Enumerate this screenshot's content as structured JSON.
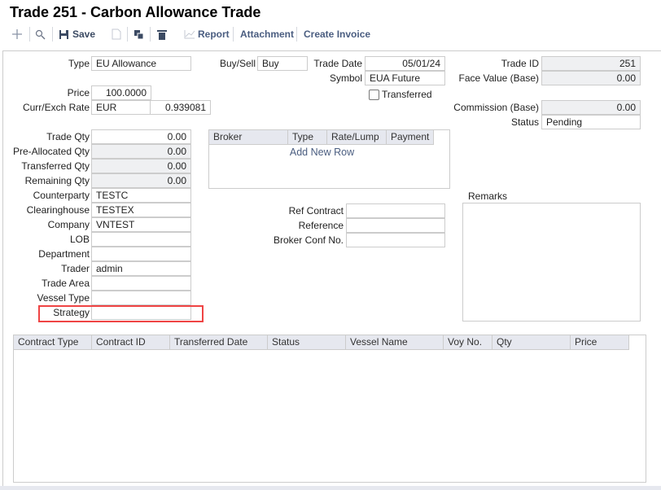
{
  "title": "Trade 251 - Carbon Allowance Trade",
  "toolbar": {
    "new_icon": "plus-icon",
    "search_icon": "search-icon",
    "save": "Save",
    "copy_icon": "document-icon",
    "duplicate_icon": "duplicate-icon",
    "delete_icon": "trash-icon",
    "report": "Report",
    "attachment": "Attachment",
    "create_invoice": "Create Invoice"
  },
  "form": {
    "type": {
      "label": "Type",
      "value": "EU Allowance"
    },
    "buy_sell": {
      "label": "Buy/Sell",
      "value": "Buy"
    },
    "trade_date": {
      "label": "Trade Date",
      "value": "05/01/24"
    },
    "symbol": {
      "label": "Symbol",
      "value": "EUA Future"
    },
    "transferred": {
      "label": "Transferred",
      "checked": false
    },
    "trade_id": {
      "label": "Trade ID",
      "value": "251"
    },
    "face_value": {
      "label": "Face Value (Base)",
      "value": "0.00"
    },
    "price": {
      "label": "Price",
      "value": "100.0000"
    },
    "curr_exch": {
      "label": "Curr/Exch Rate",
      "currency": "EUR",
      "rate": "0.939081"
    },
    "commission": {
      "label": "Commission (Base)",
      "value": "0.00"
    },
    "status": {
      "label": "Status",
      "value": "Pending"
    },
    "trade_qty": {
      "label": "Trade Qty",
      "value": "0.00"
    },
    "pre_allocated_qty": {
      "label": "Pre-Allocated Qty",
      "value": "0.00"
    },
    "transferred_qty": {
      "label": "Transferred Qty",
      "value": "0.00"
    },
    "remaining_qty": {
      "label": "Remaining Qty",
      "value": "0.00"
    },
    "counterparty": {
      "label": "Counterparty",
      "value": "TESTC"
    },
    "clearinghouse": {
      "label": "Clearinghouse",
      "value": "TESTEX"
    },
    "company": {
      "label": "Company",
      "value": "VNTEST"
    },
    "lob": {
      "label": "LOB",
      "value": ""
    },
    "department": {
      "label": "Department",
      "value": ""
    },
    "trader": {
      "label": "Trader",
      "value": "admin"
    },
    "trade_area": {
      "label": "Trade Area",
      "value": ""
    },
    "vessel_type": {
      "label": "Vessel Type",
      "value": ""
    },
    "strategy": {
      "label": "Strategy",
      "value": ""
    },
    "ref_contract": {
      "label": "Ref Contract",
      "value": ""
    },
    "reference": {
      "label": "Reference",
      "value": ""
    },
    "broker_conf_no": {
      "label": "Broker Conf No.",
      "value": ""
    },
    "remarks": {
      "label": "Remarks",
      "value": ""
    }
  },
  "broker_grid": {
    "columns": [
      "Broker",
      "Type",
      "Rate/Lump",
      "Payment"
    ],
    "add_row": "Add New Row"
  },
  "contracts_grid": {
    "columns": [
      "Contract Type",
      "Contract ID",
      "Transferred Date",
      "Status",
      "Vessel Name",
      "Voy No.",
      "Qty",
      "Price"
    ],
    "rows": []
  },
  "colors": {
    "highlight": "#ef4444",
    "toolbar_text": "#3b4a63",
    "link": "#4a5d80"
  }
}
